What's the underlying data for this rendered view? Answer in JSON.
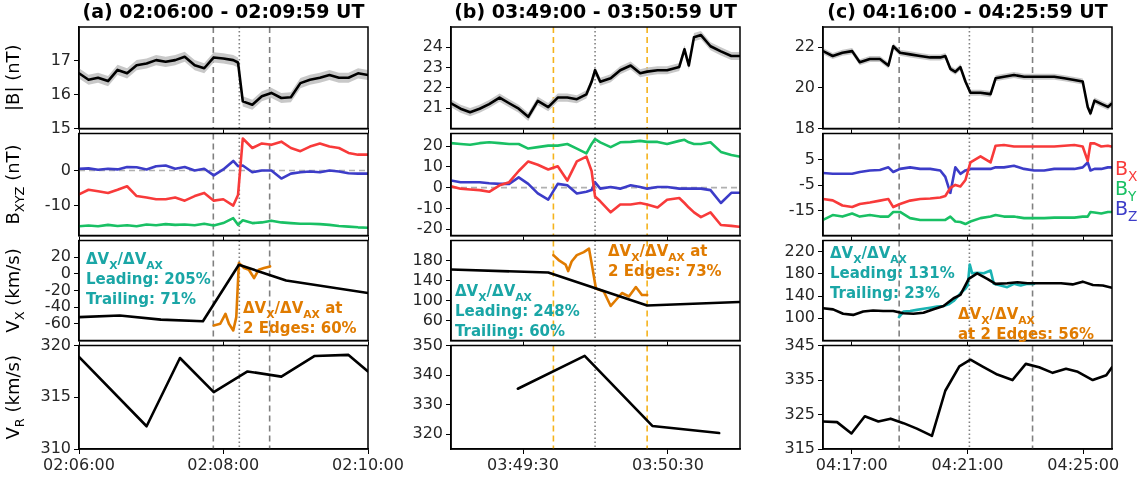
{
  "chart_data": [
    {
      "type": "line",
      "title": "(a) 02:06:00 - 02:09:59 UT",
      "ylabel": "|B| (nT)",
      "x": [
        2.1,
        2.1022,
        2.1044,
        2.1067,
        2.1089,
        2.1111,
        2.1133,
        2.1156,
        2.1178,
        2.12,
        2.1222,
        2.1244,
        2.1267,
        2.1289,
        2.1311,
        2.1333,
        2.1356,
        2.1367,
        2.1378,
        2.14,
        2.1422,
        2.1444,
        2.1467,
        2.1489,
        2.1511,
        2.1533,
        2.1556,
        2.1578,
        2.16,
        2.1622,
        2.1644,
        2.1667
      ],
      "xlim": [
        2.1,
        2.1667
      ],
      "xticks": [
        {
          "value": 2.1,
          "label": null
        },
        {
          "value": 2.1333,
          "label": null
        },
        {
          "value": 2.1667,
          "label": null
        }
      ],
      "ylim": [
        15,
        18
      ],
      "yticks": [
        15,
        16,
        17
      ],
      "tick_labels": "y",
      "marker": "none",
      "ref_lines": [
        {
          "axis": "x",
          "value": 2.131,
          "color": "#808080",
          "line_style": "dashed"
        },
        {
          "axis": "x",
          "value": 2.137,
          "color": "#808080",
          "line_style": "dotted"
        },
        {
          "axis": "x",
          "value": 2.144,
          "color": "#808080",
          "line_style": "dashed"
        }
      ],
      "series": [
        {
          "color": "#000000",
          "values": [
            16.63,
            16.44,
            16.5,
            16.4,
            16.73,
            16.63,
            16.87,
            16.92,
            17.02,
            16.97,
            17.02,
            17.12,
            16.87,
            16.78,
            17.1,
            17.07,
            17.02,
            16.95,
            15.8,
            15.7,
            15.95,
            16.05,
            15.9,
            15.92,
            16.34,
            16.44,
            16.5,
            16.58,
            16.5,
            16.5,
            16.63,
            16.58
          ],
          "lower": [
            16.48,
            16.29,
            16.35,
            16.25,
            16.58,
            16.48,
            16.72,
            16.77,
            16.87,
            16.82,
            16.87,
            16.97,
            16.72,
            16.63,
            16.95,
            16.92,
            16.87,
            16.8,
            15.65,
            15.55,
            15.8,
            15.9,
            15.75,
            15.77,
            16.19,
            16.29,
            16.35,
            16.43,
            16.35,
            16.35,
            16.48,
            16.43
          ],
          "upper": [
            16.78,
            16.59,
            16.65,
            16.55,
            16.88,
            16.78,
            17.02,
            17.07,
            17.17,
            17.12,
            17.17,
            17.27,
            17.02,
            16.93,
            17.25,
            17.22,
            17.17,
            17.1,
            15.95,
            15.85,
            16.1,
            16.2,
            16.05,
            16.07,
            16.49,
            16.59,
            16.65,
            16.73,
            16.65,
            16.65,
            16.78,
            16.73
          ]
        }
      ]
    },
    {
      "type": "line",
      "ylabel": "B$_{XYZ}$ (nT)",
      "x": [
        2.1,
        2.1022,
        2.1044,
        2.1067,
        2.1089,
        2.1111,
        2.1133,
        2.1156,
        2.1178,
        2.12,
        2.1222,
        2.1244,
        2.1267,
        2.1289,
        2.1311,
        2.1333,
        2.1356,
        2.1367,
        2.1378,
        2.14,
        2.1422,
        2.1444,
        2.1467,
        2.1489,
        2.1511,
        2.1533,
        2.1556,
        2.1578,
        2.16,
        2.1622,
        2.1644,
        2.1667
      ],
      "xlim": [
        2.1,
        2.1667
      ],
      "xticks": [
        {
          "value": 2.1,
          "label": null
        },
        {
          "value": 2.1333,
          "label": null
        },
        {
          "value": 2.1667,
          "label": null
        }
      ],
      "ylim": [
        -18.5,
        10.5
      ],
      "yticks": [
        -10,
        0
      ],
      "tick_labels": "y",
      "marker": "none",
      "ref_lines": [
        {
          "axis": "y",
          "value": 0,
          "color": "#b0b0b0",
          "line_style": "dashed"
        },
        {
          "axis": "x",
          "value": 2.131,
          "color": "#808080",
          "line_style": "dashed"
        },
        {
          "axis": "x",
          "value": 2.137,
          "color": "#808080",
          "line_style": "dotted"
        },
        {
          "axis": "x",
          "value": 2.144,
          "color": "#808080",
          "line_style": "dashed"
        }
      ],
      "series": [
        {
          "color": "#f83a3a",
          "values": [
            -6.8,
            -5.5,
            -5.9,
            -6.4,
            -5.5,
            -4.5,
            -7.3,
            -7.7,
            -8.2,
            -8.2,
            -7.7,
            -8.6,
            -7.3,
            -6.4,
            -8.6,
            -8.2,
            -10,
            -7,
            9.1,
            6.4,
            7.7,
            7.3,
            8.2,
            6.4,
            5.5,
            6.8,
            7.7,
            6.8,
            6.4,
            5,
            4.5,
            4.5
          ]
        },
        {
          "color": "#19c064",
          "values": [
            -15.9,
            -15.7,
            -15.9,
            -15.5,
            -15.8,
            -15.6,
            -15.9,
            -15.4,
            -15.6,
            -15.3,
            -15.5,
            -15.4,
            -15.6,
            -15.2,
            -15.7,
            -15,
            -13.6,
            -15.5,
            -14.2,
            -15,
            -14.8,
            -14.3,
            -14.8,
            -15,
            -15.2,
            -15.2,
            -15.3,
            -15.5,
            -15.8,
            -16,
            -16.2,
            -16.3
          ]
        },
        {
          "color": "#3c3cc8",
          "values": [
            0.5,
            0.6,
            0.2,
            0.5,
            0.3,
            1,
            0.9,
            0.3,
            1.2,
            1.4,
            0.5,
            1,
            0,
            0.5,
            -1.4,
            0.3,
            2.7,
            1.2,
            1.4,
            -0.5,
            0,
            0,
            -2.3,
            -0.9,
            -0.5,
            -0.3,
            -0.5,
            0,
            -0.3,
            -0.8,
            -0.9,
            -0.9
          ]
        }
      ]
    },
    {
      "type": "line",
      "ylabel": "V$_{X}$ (km/s)",
      "xlim": [
        2.1,
        2.1667
      ],
      "xticks": [
        {
          "value": 2.1,
          "label": null
        },
        {
          "value": 2.1333,
          "label": null
        },
        {
          "value": 2.1667,
          "label": null
        }
      ],
      "ylim": [
        -80,
        40
      ],
      "yticks": [
        -60,
        -40,
        -20,
        0,
        20
      ],
      "tick_labels": "y",
      "marker": "none",
      "ref_lines": [
        {
          "axis": "x",
          "value": 2.131,
          "color": "#808080",
          "line_style": "dashed"
        },
        {
          "axis": "x",
          "value": 2.137,
          "color": "#808080",
          "line_style": "dotted"
        },
        {
          "axis": "x",
          "value": 2.144,
          "color": "#808080",
          "line_style": "dashed"
        }
      ],
      "annotations": [
        "ΔV$_{X}$/ΔV$_{AX}$\nLeading: 205%\nTrailing: 71%",
        "ΔV$_{X}$/ΔV$_{AX}$ at\n2 Edges: 60%"
      ],
      "series": [
        {
          "color": "#000000",
          "x": [
            2.1,
            2.1094,
            2.1189,
            2.1286,
            2.1369,
            2.1478,
            2.1667
          ],
          "values": [
            -52,
            -50,
            -55,
            -57,
            11,
            -8,
            -23
          ]
        },
        {
          "color": "#e07b00",
          "x": [
            2.1311,
            2.1326,
            2.1338,
            2.1346,
            2.1356,
            2.1363,
            2.1369,
            2.1381,
            2.1392,
            2.1404,
            2.1415,
            2.1427,
            2.1441
          ],
          "values": [
            -62,
            -60,
            -48,
            -60,
            -68,
            -52,
            13,
            7,
            5,
            -5,
            5,
            7,
            9
          ]
        }
      ]
    },
    {
      "type": "line",
      "ylabel": "V$_{R}$ (km/s)",
      "xlim": [
        2.1,
        2.1667
      ],
      "xticks": [
        {
          "value": 2.1,
          "label": "02:06:00"
        },
        {
          "value": 2.1333,
          "label": "02:08:00"
        },
        {
          "value": 2.1667,
          "label": "02:10:00"
        }
      ],
      "ylim": [
        310,
        320
      ],
      "yticks": [
        310,
        315,
        320
      ],
      "marker": "none",
      "ref_lines": [
        {
          "axis": "x",
          "value": 2.131,
          "color": "#808080",
          "line_style": "dashed"
        },
        {
          "axis": "x",
          "value": 2.137,
          "color": "#808080",
          "line_style": "dotted"
        },
        {
          "axis": "x",
          "value": 2.144,
          "color": "#808080",
          "line_style": "dashed"
        }
      ],
      "series": [
        {
          "color": "#000000",
          "x": [
            2.1,
            2.1156,
            2.1233,
            2.1311,
            2.1389,
            2.1467,
            2.1544,
            2.1622,
            2.1667
          ],
          "values": [
            318.9,
            312.2,
            318.8,
            315.5,
            317.5,
            317,
            319,
            319.1,
            317.5
          ]
        }
      ]
    },
    {
      "type": "line",
      "title": "(b) 03:49:00 - 03:50:59 UT",
      "x": [
        3.8167,
        3.8178,
        3.8189,
        3.82,
        3.8211,
        3.8223,
        3.8234,
        3.8245,
        3.8256,
        3.8267,
        3.8279,
        3.829,
        3.8301,
        3.8312,
        3.8323,
        3.8329,
        3.8333,
        3.8339,
        3.8351,
        3.8362,
        3.8374,
        3.8385,
        3.8393,
        3.8405,
        3.8416,
        3.843,
        3.8436,
        3.8441,
        3.8447,
        3.8455,
        3.8466,
        3.8478,
        3.849,
        3.8499
      ],
      "xlim": [
        3.8167,
        3.85
      ],
      "xticks": [
        {
          "value": 3.825,
          "label": null
        },
        {
          "value": 3.8417,
          "label": null
        }
      ],
      "ylim": [
        20,
        25
      ],
      "yticks": [
        21,
        22,
        23,
        24
      ],
      "tick_labels": "y",
      "marker": "none",
      "ref_lines": [
        {
          "axis": "x",
          "value": 3.8285,
          "color": "#f5b31c",
          "line_style": "dashed"
        },
        {
          "axis": "x",
          "value": 3.8333,
          "color": "#808080",
          "line_style": "dotted"
        },
        {
          "axis": "x",
          "value": 3.8393,
          "color": "#f5b31c",
          "line_style": "dashed"
        }
      ],
      "series": [
        {
          "color": "#000000",
          "values": [
            21.24,
            20.97,
            20.8,
            20.97,
            21.2,
            21.52,
            21.24,
            20.97,
            20.57,
            21.36,
            21.05,
            21.52,
            21.52,
            21.44,
            21.68,
            22.3,
            22.87,
            22.3,
            22.47,
            22.87,
            23.1,
            22.72,
            22.8,
            22.87,
            22.87,
            23.03,
            23.9,
            23.1,
            24.5,
            24.6,
            24.05,
            23.8,
            23.57,
            23.57
          ],
          "lower": [
            21.04,
            20.77,
            20.6,
            20.77,
            21,
            21.32,
            21.04,
            20.77,
            20.37,
            21.16,
            20.85,
            21.32,
            21.32,
            21.24,
            21.48,
            22.1,
            22.67,
            22.1,
            22.27,
            22.67,
            22.9,
            22.52,
            22.6,
            22.67,
            22.67,
            22.83,
            23.7,
            22.9,
            24.3,
            24.4,
            23.85,
            23.6,
            23.37,
            23.37
          ],
          "upper": [
            21.44,
            21.17,
            21,
            21.17,
            21.4,
            21.72,
            21.44,
            21.17,
            20.77,
            21.56,
            21.25,
            21.72,
            21.72,
            21.64,
            21.88,
            22.5,
            23.07,
            22.5,
            22.67,
            23.07,
            23.3,
            22.92,
            23,
            23.07,
            23.07,
            23.23,
            24.1,
            23.3,
            24.7,
            24.8,
            24.25,
            24,
            23.77,
            23.77
          ]
        }
      ]
    },
    {
      "type": "line",
      "x": [
        3.8167,
        3.8178,
        3.8189,
        3.82,
        3.8211,
        3.8223,
        3.8234,
        3.8245,
        3.8256,
        3.8267,
        3.8279,
        3.829,
        3.8301,
        3.8312,
        3.8323,
        3.8329,
        3.8333,
        3.8339,
        3.8351,
        3.8362,
        3.8374,
        3.8385,
        3.8393,
        3.8405,
        3.8416,
        3.843,
        3.8436,
        3.8441,
        3.8447,
        3.8455,
        3.8466,
        3.8478,
        3.849,
        3.8499
      ],
      "xlim": [
        3.8167,
        3.85
      ],
      "xticks": [
        {
          "value": 3.825,
          "label": null
        },
        {
          "value": 3.8417,
          "label": null
        }
      ],
      "ylim": [
        -23,
        26
      ],
      "yticks": [
        -20,
        -10,
        0,
        10,
        20
      ],
      "tick_labels": "y",
      "marker": "none",
      "ref_lines": [
        {
          "axis": "y",
          "value": 0,
          "color": "#b0b0b0",
          "line_style": "dashed"
        },
        {
          "axis": "x",
          "value": 3.8285,
          "color": "#f5b31c",
          "line_style": "dashed"
        },
        {
          "axis": "x",
          "value": 3.8333,
          "color": "#808080",
          "line_style": "dotted"
        },
        {
          "axis": "x",
          "value": 3.8393,
          "color": "#f5b31c",
          "line_style": "dashed"
        }
      ],
      "series": [
        {
          "color": "#f83a3a",
          "values": [
            0.6,
            -0.5,
            -0.9,
            -1.2,
            -2,
            1.1,
            2.6,
            8,
            12.6,
            11,
            8.7,
            10.3,
            3.4,
            12.6,
            14.9,
            8,
            -4.3,
            -6.6,
            -11.9,
            -8.1,
            -8.1,
            -7.4,
            -8.1,
            -9.6,
            -5.8,
            -5,
            -7.4,
            -9.6,
            -11.9,
            -14.2,
            -11.9,
            -18,
            -18.4,
            -18.8
          ]
        },
        {
          "color": "#19c064",
          "values": [
            21.4,
            21,
            20.6,
            21.4,
            21.8,
            21.4,
            21,
            21,
            18.8,
            19.5,
            20.2,
            20.2,
            21,
            18.8,
            16.5,
            21,
            23.4,
            21.8,
            19.5,
            21.8,
            22,
            22.5,
            22,
            22,
            21,
            22.5,
            23,
            21.8,
            21,
            21,
            21.8,
            17.2,
            15.7,
            15
          ]
        },
        {
          "color": "#3c3cc8",
          "values": [
            3.4,
            2.6,
            2.6,
            2.6,
            2.1,
            1.8,
            1.8,
            4.9,
            1.8,
            -2.8,
            -5.8,
            1.8,
            1.1,
            -2.8,
            -2,
            -1.2,
            2.6,
            -0.5,
            0.3,
            -0.5,
            1.1,
            0.3,
            -0.5,
            0.3,
            0.3,
            -0.5,
            -0.5,
            -0.5,
            -0.5,
            -0.5,
            -1.2,
            -7.4,
            -2.5,
            -2.5
          ]
        }
      ]
    },
    {
      "type": "line",
      "xlim": [
        3.8167,
        3.85
      ],
      "xticks": [
        {
          "value": 3.825,
          "label": null
        },
        {
          "value": 3.8417,
          "label": null
        }
      ],
      "ylim": [
        20,
        220
      ],
      "yticks": [
        60,
        100,
        140,
        180
      ],
      "tick_labels": "y",
      "marker": "none",
      "ref_lines": [
        {
          "axis": "x",
          "value": 3.8285,
          "color": "#f5b31c",
          "line_style": "dashed"
        },
        {
          "axis": "x",
          "value": 3.8333,
          "color": "#808080",
          "line_style": "dotted"
        },
        {
          "axis": "x",
          "value": 3.8393,
          "color": "#f5b31c",
          "line_style": "dashed"
        }
      ],
      "annotations": [
        "ΔV$_{X}$/ΔV$_{AX}$ at\n2 Edges: 73%",
        "ΔV$_{X}$/ΔV$_{AX}$\nLeading: 248%\nTrailing: 60%"
      ],
      "series": [
        {
          "color": "#000000",
          "x": [
            3.8167,
            3.8279,
            3.8393,
            3.8499
          ],
          "values": [
            162,
            156,
            90,
            97
          ]
        },
        {
          "color": "#e07b00",
          "x": [
            3.8285,
            3.8291,
            3.8299,
            3.8302,
            3.8306,
            3.8312,
            3.832,
            3.8326,
            3.8329,
            3.8334,
            3.8343,
            3.8351,
            3.8356,
            3.8364,
            3.8372,
            3.838,
            3.8387,
            3.8393
          ],
          "values": [
            191,
            181,
            172,
            159,
            178,
            191,
            197,
            204,
            175,
            124,
            118,
            89,
            99,
            115,
            108,
            127,
            111,
            111
          ]
        }
      ]
    },
    {
      "type": "line",
      "xlim": [
        3.8167,
        3.85
      ],
      "xticks": [
        {
          "value": 3.825,
          "label": "03:49:30"
        },
        {
          "value": 3.8417,
          "label": "03:50:30"
        }
      ],
      "ylim": [
        315,
        350
      ],
      "yticks": [
        320,
        330,
        340,
        350
      ],
      "marker": "none",
      "ref_lines": [
        {
          "axis": "x",
          "value": 3.8285,
          "color": "#f5b31c",
          "line_style": "dashed"
        },
        {
          "axis": "x",
          "value": 3.8333,
          "color": "#808080",
          "line_style": "dotted"
        },
        {
          "axis": "x",
          "value": 3.8393,
          "color": "#f5b31c",
          "line_style": "dashed"
        }
      ],
      "series": [
        {
          "color": "#000000",
          "x": [
            3.8244,
            3.8321,
            3.8399,
            3.8476
          ],
          "values": [
            335.4,
            346.5,
            322.8,
            320.4
          ]
        }
      ]
    },
    {
      "type": "line",
      "title": "(c) 04:16:00 - 04:25:59 UT",
      "x": [
        4.2667,
        4.2723,
        4.2779,
        4.2835,
        4.2879,
        4.2937,
        4.2995,
        4.3044,
        4.3072,
        4.3111,
        4.3169,
        4.3227,
        4.3285,
        4.3343,
        4.3372,
        4.3401,
        4.343,
        4.3459,
        4.3488,
        4.3517,
        4.3575,
        4.3633,
        4.3662,
        4.371,
        4.3768,
        4.3826,
        4.3884,
        4.3942,
        4.4,
        4.4058,
        4.4116,
        4.4164,
        4.4193,
        4.4209,
        4.4232,
        4.4271,
        4.4309,
        4.4329
      ],
      "xlim": [
        4.2667,
        4.4333
      ],
      "xticks": [
        {
          "value": 4.2833,
          "label": null
        },
        {
          "value": 4.35,
          "label": null
        },
        {
          "value": 4.4167,
          "label": null
        }
      ],
      "ylim": [
        18,
        23
      ],
      "yticks": [
        18,
        20,
        22
      ],
      "tick_labels": "y",
      "marker": "none",
      "ref_lines": [
        {
          "axis": "x",
          "value": 4.3106,
          "color": "#808080",
          "line_style": "dashed"
        },
        {
          "axis": "x",
          "value": 4.3511,
          "color": "#808080",
          "line_style": "dotted"
        },
        {
          "axis": "x",
          "value": 4.3875,
          "color": "#808080",
          "line_style": "dashed"
        }
      ],
      "series": [
        {
          "color": "#000000",
          "values": [
            21.81,
            21.57,
            21.73,
            21.81,
            21.26,
            21.42,
            21.42,
            21.1,
            22.05,
            21.73,
            21.65,
            21.57,
            21.5,
            21.5,
            21.57,
            20.94,
            20.79,
            21.02,
            20.31,
            19.76,
            19.76,
            19.69,
            20.47,
            20.55,
            20.63,
            20.55,
            20.55,
            20.55,
            20.55,
            20.47,
            20.39,
            20.31,
            19.06,
            18.74,
            19.37,
            19.21,
            19.06,
            19.21
          ],
          "lower": [
            21.66,
            21.42,
            21.58,
            21.66,
            21.11,
            21.27,
            21.27,
            20.95,
            21.9,
            21.58,
            21.5,
            21.42,
            21.35,
            21.35,
            21.42,
            20.79,
            20.64,
            20.87,
            20.16,
            19.61,
            19.61,
            19.54,
            20.32,
            20.4,
            20.48,
            20.4,
            20.4,
            20.4,
            20.4,
            20.32,
            20.24,
            20.16,
            18.91,
            18.59,
            19.22,
            19.06,
            18.91,
            19.06
          ],
          "upper": [
            21.96,
            21.72,
            21.88,
            21.96,
            21.41,
            21.57,
            21.57,
            21.25,
            22.2,
            21.88,
            21.8,
            21.72,
            21.65,
            21.65,
            21.72,
            21.09,
            20.94,
            21.17,
            20.46,
            19.91,
            19.91,
            19.84,
            20.62,
            20.7,
            20.78,
            20.7,
            20.7,
            20.7,
            20.7,
            20.62,
            20.54,
            20.46,
            19.21,
            18.89,
            19.52,
            19.36,
            19.21,
            19.36
          ]
        }
      ]
    },
    {
      "type": "line",
      "x": [
        4.2667,
        4.2723,
        4.2779,
        4.2835,
        4.2879,
        4.2937,
        4.2995,
        4.3044,
        4.3072,
        4.3111,
        4.3169,
        4.3227,
        4.3285,
        4.3343,
        4.3372,
        4.3401,
        4.343,
        4.3459,
        4.3488,
        4.3517,
        4.3575,
        4.3633,
        4.3662,
        4.371,
        4.3768,
        4.3826,
        4.3884,
        4.3942,
        4.4,
        4.4058,
        4.4116,
        4.4164,
        4.4193,
        4.4209,
        4.4232,
        4.4271,
        4.4309,
        4.4329
      ],
      "xlim": [
        4.2667,
        4.4333
      ],
      "xticks": [
        {
          "value": 4.2833,
          "label": null
        },
        {
          "value": 4.35,
          "label": null
        },
        {
          "value": 4.4167,
          "label": null
        }
      ],
      "ylim": [
        -24.5,
        15
      ],
      "yticks": [
        -15,
        -5,
        5
      ],
      "tick_labels": "y",
      "marker": "none",
      "legend": "right",
      "ref_lines": [
        {
          "axis": "x",
          "value": 4.3106,
          "color": "#808080",
          "line_style": "dashed"
        },
        {
          "axis": "x",
          "value": 4.3511,
          "color": "#808080",
          "line_style": "dotted"
        },
        {
          "axis": "x",
          "value": 4.3875,
          "color": "#808080",
          "line_style": "dashed"
        }
      ],
      "series": [
        {
          "name": "B$_{X}$",
          "color": "#f83a3a",
          "values": [
            -10.4,
            -10.9,
            -12.9,
            -13.5,
            -12.3,
            -11.7,
            -11,
            -10.4,
            -13.5,
            -12.3,
            -11,
            -10.4,
            -10.2,
            -9.8,
            -9.2,
            -6.1,
            -4.9,
            -5.5,
            -3,
            3.8,
            6.2,
            3.8,
            10.3,
            10.6,
            10,
            10,
            10,
            10,
            10,
            10.3,
            10.6,
            10,
            4.4,
            11.2,
            11.2,
            10,
            10.3,
            10
          ]
        },
        {
          "name": "B$_{Y}$",
          "color": "#19c064",
          "values": [
            -18.5,
            -16.6,
            -17.2,
            -16,
            -17.2,
            -16.6,
            -17.2,
            -17.2,
            -15.4,
            -15.4,
            -17.8,
            -18.5,
            -18.5,
            -18.5,
            -18.5,
            -17.2,
            -19.1,
            -19.3,
            -20.1,
            -19.1,
            -17.8,
            -17.2,
            -16.6,
            -17.2,
            -17.2,
            -17.8,
            -17.8,
            -17.8,
            -17.6,
            -17.6,
            -17.6,
            -17.2,
            -17.2,
            -15.4,
            -15.6,
            -16,
            -15.4,
            -15.4
          ]
        },
        {
          "name": "B$_{Z}$",
          "color": "#3c3cc8",
          "values": [
            -0.3,
            -0.6,
            -0.6,
            -0.6,
            0.1,
            0.7,
            0.9,
            1.9,
            0.1,
            1.3,
            1.9,
            1.3,
            1.3,
            0.7,
            -1.8,
            -8,
            1.9,
            -0.6,
            0.7,
            1.3,
            1.3,
            1.3,
            1.9,
            1.9,
            2.5,
            1.3,
            0.7,
            0.7,
            1.3,
            1.3,
            1.3,
            1.9,
            3.8,
            0.7,
            1.3,
            1.3,
            1.9,
            1.9
          ]
        }
      ]
    },
    {
      "type": "line",
      "xlim": [
        4.2667,
        4.4333
      ],
      "xticks": [
        {
          "value": 4.2833,
          "label": null
        },
        {
          "value": 4.35,
          "label": null
        },
        {
          "value": 4.4167,
          "label": null
        }
      ],
      "ylim": [
        60,
        240
      ],
      "yticks": [
        100,
        140,
        180,
        220
      ],
      "tick_labels": "y",
      "marker": "none",
      "ref_lines": [
        {
          "axis": "x",
          "value": 4.3106,
          "color": "#808080",
          "line_style": "dashed"
        },
        {
          "axis": "x",
          "value": 4.3511,
          "color": "#808080",
          "line_style": "dotted"
        },
        {
          "axis": "x",
          "value": 4.3875,
          "color": "#808080",
          "line_style": "dashed"
        }
      ],
      "annotations": [
        "ΔV$_{X}$/ΔV$_{AX}$\nLeading: 131%\nTrailing: 23%",
        "ΔV$_{X}$/ΔV$_{AX}$\nat 2 Edges: 56%"
      ],
      "series": [
        {
          "color": "#000000",
          "x": [
            4.2667,
            4.2725,
            4.2783,
            4.2841,
            4.2899,
            4.2956,
            4.3014,
            4.3072,
            4.313,
            4.3188,
            4.3246,
            4.3304,
            4.3362,
            4.342,
            4.3459,
            4.3507,
            4.3556,
            4.3614,
            4.3662,
            4.3729,
            4.3788,
            4.3846,
            4.3903,
            4.3981,
            4.4039,
            4.4106,
            4.4164,
            4.4223,
            4.428,
            4.4333
          ],
          "values": [
            118,
            116,
            108,
            106,
            112,
            114,
            113,
            113,
            109,
            108,
            110,
            116,
            122,
            136,
            142,
            171,
            181,
            171,
            162,
            163,
            165,
            163,
            163,
            163,
            163,
            161,
            166,
            160,
            159,
            155
          ]
        },
        {
          "color": "#1ab3b3",
          "x": [
            4.3105,
            4.3131,
            4.3169,
            4.3208,
            4.3246,
            4.3285,
            4.3324,
            4.3362,
            4.3391,
            4.342,
            4.3459,
            4.3488,
            4.3501,
            4.3513,
            4.3527,
            4.3556,
            4.3594,
            4.3633,
            4.3652,
            4.3691,
            4.3729,
            4.3768,
            4.3807,
            4.3846,
            4.3884
          ],
          "values": [
            102,
            112,
            113,
            115,
            117,
            119,
            121,
            122,
            125,
            131,
            145,
            153,
            159,
            197,
            181,
            182,
            181,
            186,
            162,
            159,
            156,
            162,
            159,
            162,
            162
          ]
        }
      ]
    },
    {
      "type": "line",
      "xlim": [
        4.2667,
        4.4333
      ],
      "xticks": [
        {
          "value": 4.2833,
          "label": "04:17:00"
        },
        {
          "value": 4.35,
          "label": "04:21:00"
        },
        {
          "value": 4.4167,
          "label": "04:25:00"
        }
      ],
      "ylim": [
        315,
        345
      ],
      "yticks": [
        315,
        325,
        335,
        345
      ],
      "marker": "none",
      "ref_lines": [
        {
          "axis": "x",
          "value": 4.3106,
          "color": "#808080",
          "line_style": "dashed"
        },
        {
          "axis": "x",
          "value": 4.3511,
          "color": "#808080",
          "line_style": "dotted"
        },
        {
          "axis": "x",
          "value": 4.3875,
          "color": "#808080",
          "line_style": "dashed"
        }
      ],
      "series": [
        {
          "color": "#000000",
          "x": [
            4.2667,
            4.2748,
            4.2831,
            4.2908,
            4.2986,
            4.3057,
            4.3131,
            4.3208,
            4.3295,
            4.3372,
            4.3453,
            4.3517,
            4.3585,
            4.3672,
            4.3759,
            4.3836,
            4.3913,
            4.3991,
            4.4068,
            4.4136,
            4.4222,
            4.43,
            4.4333
          ],
          "values": [
            323,
            322.8,
            319.5,
            324.5,
            323,
            323.8,
            322.5,
            320.9,
            318.8,
            331.9,
            339,
            340.9,
            339,
            336.6,
            335,
            339.7,
            338.7,
            337.1,
            338.3,
            337.4,
            335,
            336.4,
            338.7
          ]
        }
      ]
    }
  ]
}
